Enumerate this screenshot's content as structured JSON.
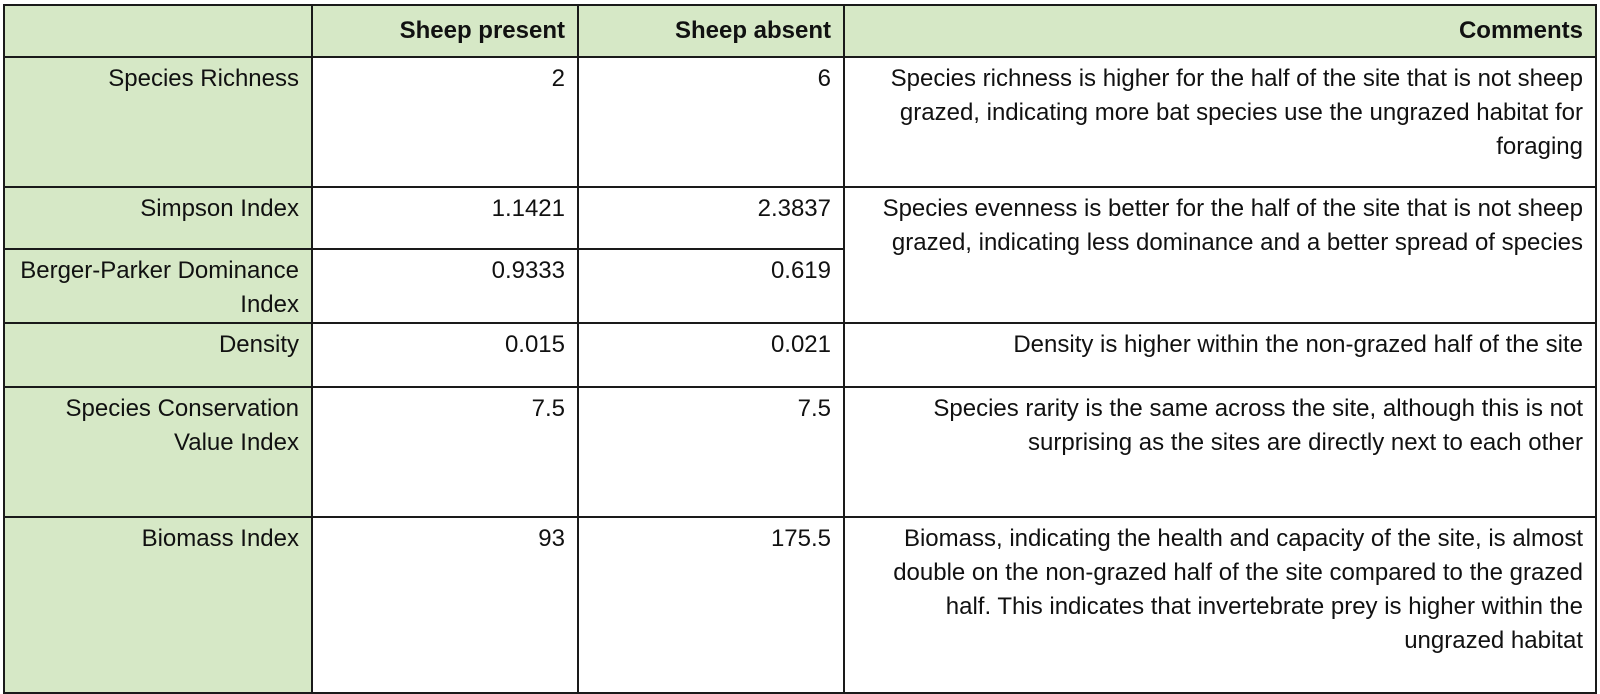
{
  "header": {
    "blank": "",
    "sheep_present": "Sheep present",
    "sheep_absent": "Sheep absent",
    "comments": "Comments"
  },
  "rows": [
    {
      "metric": "Species Richness",
      "sheep_present": "2",
      "sheep_absent": "6",
      "comment": "Species richness is higher for the half of the site that is not sheep grazed, indicating more bat species use the ungrazed habitat for foraging"
    },
    {
      "metric": "Simpson Index",
      "sheep_present": "1.1421",
      "sheep_absent": "2.3837",
      "comment": "Species evenness is better for the half of the site that is not sheep grazed, indicating less dominance and a better spread of species"
    },
    {
      "metric": "Berger-Parker Dominance Index",
      "sheep_present": "0.9333",
      "sheep_absent": "0.619",
      "comment": ""
    },
    {
      "metric": "Density",
      "sheep_present": "0.015",
      "sheep_absent": "0.021",
      "comment": "Density is higher within the non-grazed half of the site"
    },
    {
      "metric": "Species Conservation Value Index",
      "sheep_present": "7.5",
      "sheep_absent": "7.5",
      "comment": "Species rarity is the same across the site, although this is not surprising as the sites are directly next to each other"
    },
    {
      "metric": "Biomass Index",
      "sheep_present": "93",
      "sheep_absent": "175.5",
      "comment": "Biomass, indicating the health and capacity of the site, is almost double on the non-grazed half of the site compared to the grazed half. This indicates that invertebrate prey is higher within the ungrazed habitat"
    }
  ],
  "colors": {
    "header_fill": "#d6e8c6",
    "border": "#1a1a1a",
    "text": "#111111"
  }
}
